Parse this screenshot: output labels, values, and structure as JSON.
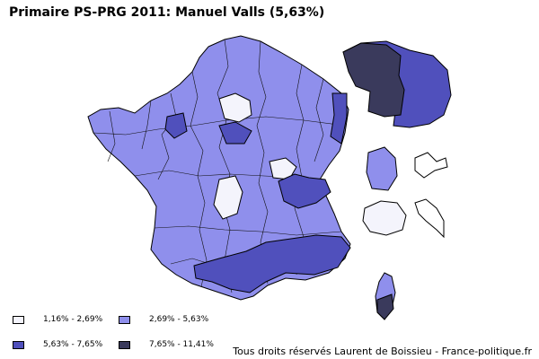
{
  "title": "Primaire PS-PRG 2011: Manuel Valls (5,63%)",
  "colors": {
    "very_low": "#f4f4fc",
    "low": "#8f8fec",
    "high": "#5050bc",
    "very_high": "#3a3a5c",
    "outline": "#000000"
  },
  "legend": [
    {
      "label": "1,16% - 2,69%",
      "color": "#f4f4fc"
    },
    {
      "label": "2,69% - 5,63%",
      "color": "#8f8fec"
    },
    {
      "label": "5,63% - 7,65%",
      "color": "#5050bc"
    },
    {
      "label": "7,65% - 11,41%",
      "color": "#3a3a5c"
    }
  ],
  "credit": "Tous droits réservés Laurent de Boissieu - France-politique.fr"
}
